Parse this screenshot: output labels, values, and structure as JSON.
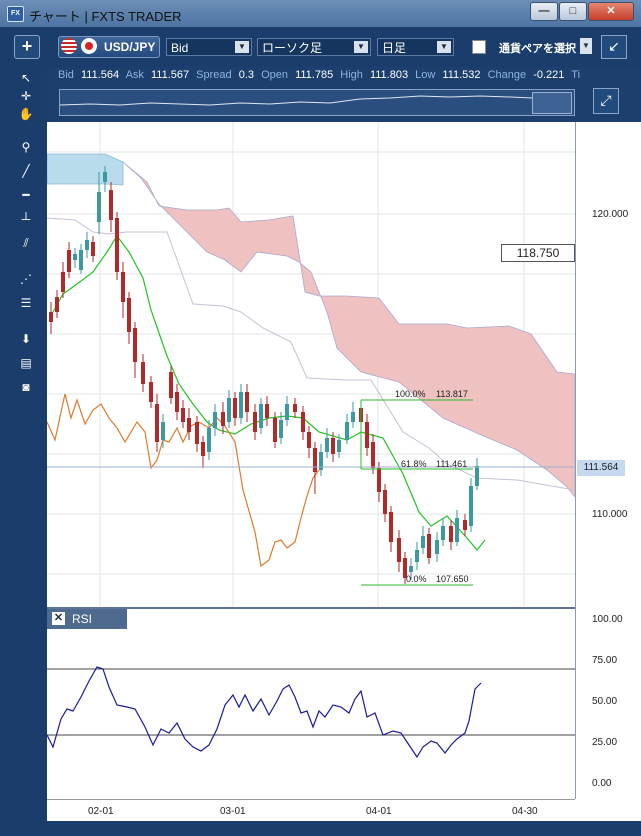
{
  "window": {
    "title": "チャート | FXTS TRADER",
    "app_icon": "FX",
    "controls": {
      "minimize": "—",
      "maximize": "□",
      "close": "✕"
    }
  },
  "toolbar": {
    "add_label": "+",
    "pair": "USD/JPY",
    "price_type": "Bid",
    "chart_type": "ローソク足",
    "period": "日足",
    "pair_check_label": "通貨ペアを選択",
    "collapse_icon": "↙"
  },
  "quote": {
    "bid_label": "Bid",
    "bid": "111.564",
    "ask_label": "Ask",
    "ask": "111.567",
    "spread_label": "Spread",
    "spread": "0.3",
    "open_label": "Open",
    "open": "111.785",
    "high_label": "High",
    "high": "111.803",
    "low_label": "Low",
    "low": "111.532",
    "change_label": "Change",
    "change": "-0.221",
    "time_label": "Ti"
  },
  "price_axis": {
    "ticks": [
      "120.000",
      "110.000"
    ],
    "label_118": "118.750",
    "current": "111.564"
  },
  "fibonacci": {
    "level_100": "100.0%",
    "price_100": "113.817",
    "level_618": "61.8%",
    "price_618": "111.461",
    "level_0": "0.0%",
    "price_0": "107.650"
  },
  "rsi": {
    "title": "RSI",
    "close": "✕",
    "ticks": [
      "100.00",
      "75.00",
      "50.00",
      "25.00",
      "0.00"
    ]
  },
  "date_axis": [
    "02-01",
    "03-01",
    "04-01",
    "04-30"
  ],
  "colors": {
    "kumo_blue": "#b9dcec",
    "kumo_red": "#efc1c1",
    "tenkan": "#22c422",
    "chikou": "#e07a2a",
    "rsi_line": "#1a1a9c",
    "candle_up": "#3a9aa0",
    "candle_down": "#b02a2a"
  }
}
